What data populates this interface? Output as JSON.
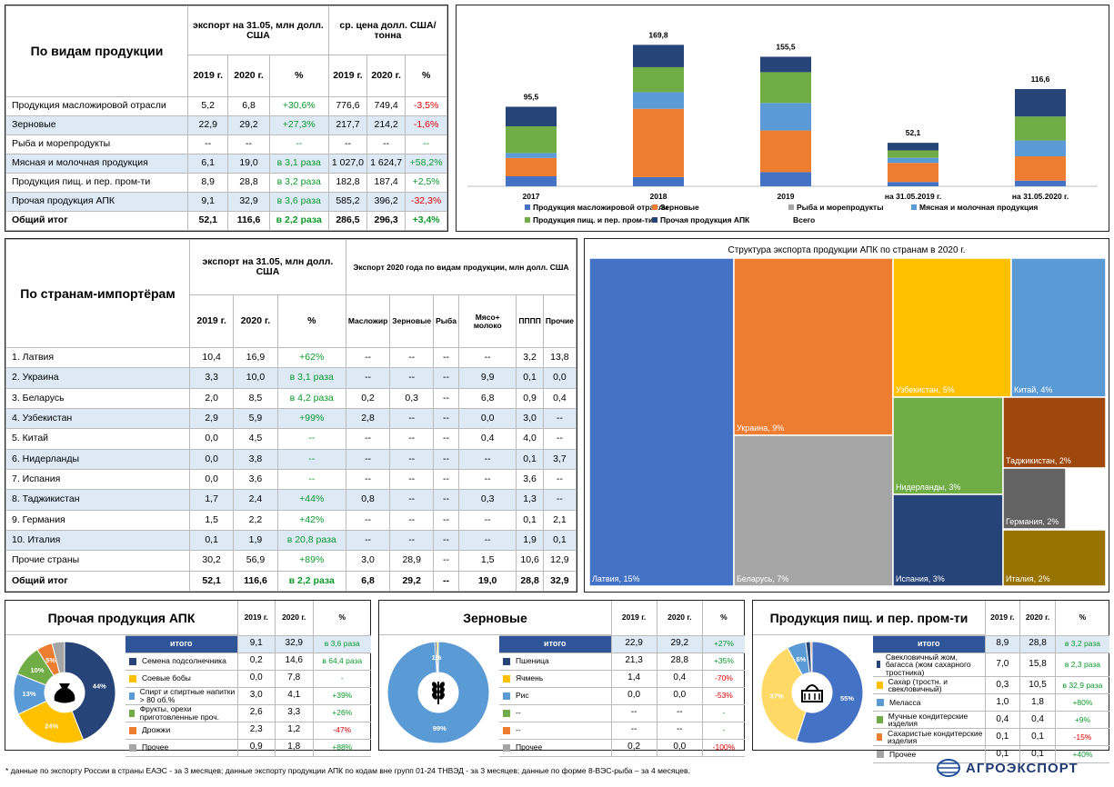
{
  "colors": {
    "oil": "#4472c4",
    "grain": "#ed7d31",
    "fish": "#a5a5a5",
    "meat": "#5b9bd5",
    "food": "#70ad47",
    "other": "#264478",
    "yellow": "#ffc000"
  },
  "products": {
    "title": "По видам продукции",
    "h_export": "экспорт на 31.05, млн долл. США",
    "h_price": "ср. цена долл. США/тонна",
    "y1": "2019 г.",
    "y2": "2020 г.",
    "pct": "%",
    "rows": [
      {
        "name": "Продукция масложировой отрасли",
        "e1": "5,2",
        "e2": "6,8",
        "ep": "+30,6%",
        "eps": "pos",
        "p1": "776,6",
        "p2": "749,4",
        "pp": "-3,5%",
        "pps": "neg"
      },
      {
        "name": "Зерновые",
        "e1": "22,9",
        "e2": "29,2",
        "ep": "+27,3%",
        "eps": "pos",
        "p1": "217,7",
        "p2": "214,2",
        "pp": "-1,6%",
        "pps": "neg"
      },
      {
        "name": "Рыба и морепродукты",
        "e1": "--",
        "e2": "--",
        "ep": "--",
        "eps": "pos",
        "p1": "--",
        "p2": "--",
        "pp": "--",
        "pps": "pos"
      },
      {
        "name": "Мясная и молочная продукция",
        "e1": "6,1",
        "e2": "19,0",
        "ep": "в 3,1 раза",
        "eps": "pos",
        "p1": "1 027,0",
        "p2": "1 624,7",
        "pp": "+58,2%",
        "pps": "pos"
      },
      {
        "name": "Продукция пищ. и пер. пром-ти",
        "e1": "8,9",
        "e2": "28,8",
        "ep": "в 3,2 раза",
        "eps": "pos",
        "p1": "182,8",
        "p2": "187,4",
        "pp": "+2,5%",
        "pps": "pos"
      },
      {
        "name": "Прочая продукция АПК",
        "e1": "9,1",
        "e2": "32,9",
        "ep": "в 3,6 раза",
        "eps": "pos",
        "p1": "585,2",
        "p2": "396,2",
        "pp": "-32,3%",
        "pps": "neg"
      },
      {
        "name": "Общий итог",
        "e1": "52,1",
        "e2": "116,6",
        "ep": "в 2,2 раза",
        "eps": "pos",
        "p1": "286,5",
        "p2": "296,3",
        "pp": "+3,4%",
        "pps": "pos"
      }
    ]
  },
  "chart_data": [
    {
      "type": "bar",
      "stacked": true,
      "categories": [
        "2017",
        "2018",
        "2019",
        "на 31.05.2019 г.",
        "на 31.05.2020 г."
      ],
      "totals": [
        "95,5",
        "169,8",
        "155,5",
        "52,1",
        "116,6"
      ],
      "total_values": [
        95.5,
        169.8,
        155.5,
        52.1,
        116.6
      ],
      "series": [
        {
          "name": "Продукция масложировой отрасли",
          "key": "oil",
          "values": [
            12,
            11,
            17,
            5.2,
            6.8
          ]
        },
        {
          "name": "Зерновые",
          "key": "grain",
          "values": [
            22,
            82,
            50,
            22.9,
            29.2
          ]
        },
        {
          "name": "Рыба и морепродукты",
          "key": "fish",
          "values": [
            0,
            0,
            0,
            0,
            0
          ]
        },
        {
          "name": "Мясная и молочная продукция",
          "key": "meat",
          "values": [
            6,
            20,
            33,
            6.1,
            19
          ]
        },
        {
          "name": "Продукция пищ. и пер. пром-ти",
          "key": "food",
          "values": [
            32,
            30,
            37,
            8.9,
            28.8
          ]
        },
        {
          "name": "Прочая продукция АПК",
          "key": "other",
          "values": [
            23.5,
            26.8,
            18.5,
            9.1,
            32.9
          ]
        }
      ],
      "legend_extra": "Всего",
      "ylim": [
        0,
        180
      ]
    },
    {
      "type": "treemap",
      "title": "Структура экспорта продукции АПК по странам в 2020 г.",
      "items": [
        {
          "label": "Латвия, 15%",
          "value": 15,
          "color": "#4472c4"
        },
        {
          "label": "Украина, 9%",
          "value": 9,
          "color": "#ed7d31"
        },
        {
          "label": "Беларусь, 7%",
          "value": 7,
          "color": "#a5a5a5"
        },
        {
          "label": "Узбекистан, 5%",
          "value": 5,
          "color": "#ffc000"
        },
        {
          "label": "Китай, 4%",
          "value": 4,
          "color": "#5b9bd5"
        },
        {
          "label": "Нидерланды, 3%",
          "value": 3,
          "color": "#70ad47"
        },
        {
          "label": "Испания, 3%",
          "value": 3,
          "color": "#264478"
        },
        {
          "label": "Таджикистан, 2%",
          "value": 2,
          "color": "#9e480e"
        },
        {
          "label": "Германия, 2%",
          "value": 2,
          "color": "#636363"
        },
        {
          "label": "Италия, 2%",
          "value": 2,
          "color": "#997300"
        }
      ]
    },
    {
      "type": "pie",
      "title": "Прочая продукция АПК",
      "slices": [
        {
          "label": "44%",
          "value": 44,
          "color": "#264478"
        },
        {
          "label": "24%",
          "value": 24,
          "color": "#ffc000"
        },
        {
          "label": "13%",
          "value": 13,
          "color": "#5b9bd5"
        },
        {
          "label": "10%",
          "value": 10,
          "color": "#70ad47"
        },
        {
          "label": "5%",
          "value": 5,
          "color": "#ed7d31"
        },
        {
          "label": "",
          "value": 4,
          "color": "#a5a5a5"
        }
      ]
    },
    {
      "type": "pie",
      "title": "Зерновые",
      "slices": [
        {
          "label": "99%",
          "value": 98.9,
          "color": "#5b9bd5"
        },
        {
          "label": "1%",
          "value": 0.6,
          "color": "#264478"
        },
        {
          "label": "",
          "value": 0.5,
          "color": "#ffc000"
        }
      ]
    },
    {
      "type": "pie",
      "title": "Продукция пищ. и пер. пром-ти",
      "slices": [
        {
          "label": "55%",
          "value": 55,
          "color": "#4472c4"
        },
        {
          "label": "37%",
          "value": 37,
          "color": "#ffd966"
        },
        {
          "label": "6%",
          "value": 6,
          "color": "#5b9bd5"
        },
        {
          "label": "",
          "value": 1.5,
          "color": "#264478"
        },
        {
          "label": "",
          "value": 0.5,
          "color": "#ed7d31"
        }
      ]
    }
  ],
  "countries": {
    "title": "По странам-импортёрам",
    "h_export": "экспорт на 31.05, млн долл. США",
    "h_types": "Экспорт 2020 года по видам продукции, млн долл. США",
    "y1": "2019 г.",
    "y2": "2020 г.",
    "pct": "%",
    "cols": [
      "Масложир",
      "Зерновые",
      "Рыба",
      "Мясо+ молоко",
      "ПППП",
      "Прочие"
    ],
    "rows": [
      {
        "name": "1. Латвия",
        "a": "10,4",
        "b": "16,9",
        "p": "+62%",
        "c": [
          "--",
          "--",
          "--",
          "--",
          "3,2",
          "13,8"
        ]
      },
      {
        "name": "2. Украина",
        "a": "3,3",
        "b": "10,0",
        "p": "в 3,1 раза",
        "c": [
          "--",
          "--",
          "--",
          "9,9",
          "0,1",
          "0,0"
        ]
      },
      {
        "name": "3. Беларусь",
        "a": "2,0",
        "b": "8,5",
        "p": "в 4,2 раза",
        "c": [
          "0,2",
          "0,3",
          "--",
          "6,8",
          "0,9",
          "0,4"
        ]
      },
      {
        "name": "4. Узбекистан",
        "a": "2,9",
        "b": "5,9",
        "p": "+99%",
        "c": [
          "2,8",
          "--",
          "--",
          "0,0",
          "3,0",
          "--"
        ]
      },
      {
        "name": "5. Китай",
        "a": "0,0",
        "b": "4,5",
        "p": "--",
        "c": [
          "--",
          "--",
          "--",
          "0,4",
          "4,0",
          "--"
        ]
      },
      {
        "name": "6. Нидерланды",
        "a": "0,0",
        "b": "3,8",
        "p": "--",
        "c": [
          "--",
          "--",
          "--",
          "--",
          "0,1",
          "3,7"
        ]
      },
      {
        "name": "7. Испания",
        "a": "0,0",
        "b": "3,6",
        "p": "--",
        "c": [
          "--",
          "--",
          "--",
          "--",
          "3,6",
          "--"
        ]
      },
      {
        "name": "8. Таджикистан",
        "a": "1,7",
        "b": "2,4",
        "p": "+44%",
        "c": [
          "0,8",
          "--",
          "--",
          "0,3",
          "1,3",
          "--"
        ]
      },
      {
        "name": "9. Германия",
        "a": "1,5",
        "b": "2,2",
        "p": "+42%",
        "c": [
          "--",
          "--",
          "--",
          "--",
          "0,1",
          "2,1"
        ]
      },
      {
        "name": "10. Италия",
        "a": "0,1",
        "b": "1,9",
        "p": "в 20,8 раза",
        "c": [
          "--",
          "--",
          "--",
          "--",
          "1,9",
          "0,1"
        ]
      },
      {
        "name": "Прочие страны",
        "a": "30,2",
        "b": "56,9",
        "p": "+89%",
        "c": [
          "3,0",
          "28,9",
          "--",
          "1,5",
          "10,6",
          "12,9"
        ]
      },
      {
        "name": "Общий итог",
        "a": "52,1",
        "b": "116,6",
        "p": "в 2,2 раза",
        "c": [
          "6,8",
          "29,2",
          "--",
          "19,0",
          "28,8",
          "32,9"
        ]
      }
    ]
  },
  "sub1": {
    "title": "Прочая продукция АПК",
    "y1": "2019 г.",
    "y2": "2020 г.",
    "pct": "%",
    "total": {
      "name": "итого",
      "a": "9,1",
      "b": "32,9",
      "p": "в 3,6 раза"
    },
    "rows": [
      {
        "name": "Семена подсолнечника",
        "a": "0,2",
        "b": "14,6",
        "p": "в 64,4 раза",
        "s": "pos",
        "color": "#264478"
      },
      {
        "name": "Соевые бобы",
        "a": "0,0",
        "b": "7,8",
        "p": "-",
        "s": "pos",
        "color": "#ffc000"
      },
      {
        "name": "Спирт и спиртные напитки > 80 об.%",
        "a": "3,0",
        "b": "4,1",
        "p": "+39%",
        "s": "pos",
        "color": "#5b9bd5"
      },
      {
        "name": "Фрукты, орехи приготовленные проч.",
        "a": "2,6",
        "b": "3,3",
        "p": "+26%",
        "s": "pos",
        "color": "#70ad47"
      },
      {
        "name": "Дрожжи",
        "a": "2,3",
        "b": "1,2",
        "p": "-47%",
        "s": "neg",
        "color": "#ed7d31"
      },
      {
        "name": "Прочее",
        "a": "0,9",
        "b": "1,8",
        "p": "+88%",
        "s": "pos",
        "color": "#a5a5a5"
      }
    ]
  },
  "sub2": {
    "title": "Зерновые",
    "y1": "2019 г.",
    "y2": "2020 г.",
    "pct": "%",
    "total": {
      "name": "итого",
      "a": "22,9",
      "b": "29,2",
      "p": "+27%"
    },
    "rows": [
      {
        "name": "Пшеница",
        "a": "21,3",
        "b": "28,8",
        "p": "+35%",
        "s": "pos",
        "color": "#264478"
      },
      {
        "name": "Ячмень",
        "a": "1,4",
        "b": "0,4",
        "p": "-70%",
        "s": "neg",
        "color": "#ffc000"
      },
      {
        "name": "Рис",
        "a": "0,0",
        "b": "0,0",
        "p": "-53%",
        "s": "neg",
        "color": "#5b9bd5"
      },
      {
        "name": "--",
        "a": "--",
        "b": "--",
        "p": "-",
        "s": "pos",
        "color": "#70ad47"
      },
      {
        "name": "--",
        "a": "--",
        "b": "--",
        "p": "-",
        "s": "pos",
        "color": "#ed7d31"
      },
      {
        "name": "Прочее",
        "a": "0,2",
        "b": "0,0",
        "p": "-100%",
        "s": "neg",
        "color": "#a5a5a5"
      }
    ]
  },
  "sub3": {
    "title": "Продукция пищ. и пер. пром-ти",
    "y1": "2019 г.",
    "y2": "2020 г.",
    "pct": "%",
    "total": {
      "name": "итого",
      "a": "8,9",
      "b": "28,8",
      "p": "в 3,2 раза"
    },
    "rows": [
      {
        "name": "Свекловичный жом, багасса (жом сахарного тростника)",
        "a": "7,0",
        "b": "15,8",
        "p": "в 2,3 раза",
        "s": "pos",
        "color": "#264478"
      },
      {
        "name": "Сахар (тростн. и свекловичный)",
        "a": "0,3",
        "b": "10,5",
        "p": "в 32,9 раза",
        "s": "pos",
        "color": "#ffc000"
      },
      {
        "name": "Меласса",
        "a": "1,0",
        "b": "1,8",
        "p": "+80%",
        "s": "pos",
        "color": "#5b9bd5"
      },
      {
        "name": "Мучные кондитерские изделия",
        "a": "0,4",
        "b": "0,4",
        "p": "+9%",
        "s": "pos",
        "color": "#70ad47"
      },
      {
        "name": "Сахаристые кондитерские изделия",
        "a": "0,1",
        "b": "0,1",
        "p": "-15%",
        "s": "neg",
        "color": "#ed7d31"
      },
      {
        "name": "Прочее",
        "a": "0,1",
        "b": "0,1",
        "p": "+40%",
        "s": "pos",
        "color": "#a5a5a5"
      }
    ]
  },
  "footer": {
    "note": "* данные по экспорту России в страны ЕАЭС - за 3 месяцев; данные экспорту продукции АПК по кодам вне групп 01-24 ТНВЭД - за 3 месяцев; данные по форме 8-ВЭС-рыба – за 4 месяцев.",
    "logo": "АГРОЭКСПОРТ"
  }
}
